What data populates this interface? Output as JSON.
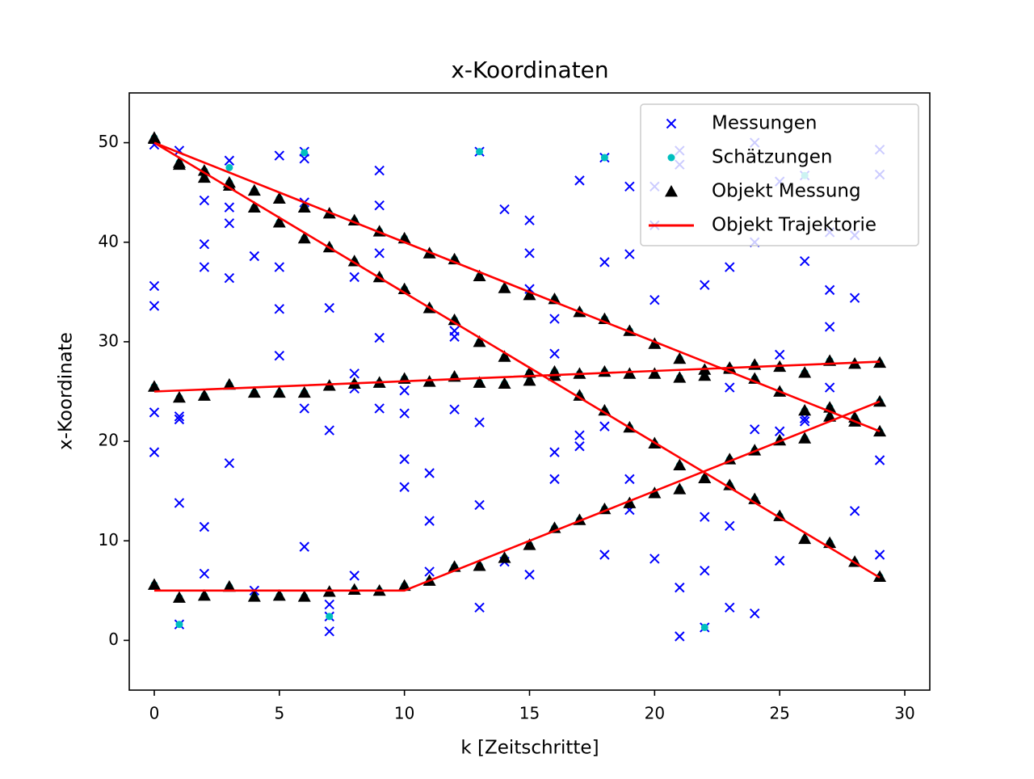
{
  "chart_data": {
    "type": "scatter",
    "title": "x-Koordinaten",
    "xlabel": "k [Zeitschritte]",
    "ylabel": "x-Koordinate",
    "xlim": [
      -1,
      31
    ],
    "ylim": [
      -5,
      55
    ],
    "xticks": [
      0,
      5,
      10,
      15,
      20,
      25,
      30
    ],
    "yticks": [
      0,
      10,
      20,
      30,
      40,
      50
    ],
    "grid": false,
    "legend": "upper right",
    "series": [
      {
        "name": "Messungen",
        "color": "#0000ff",
        "marker": "x",
        "x": [
          0,
          0,
          0,
          0,
          0,
          1,
          1,
          1,
          1,
          1,
          2,
          2,
          2,
          2,
          2,
          3,
          3,
          3,
          3,
          3,
          4,
          4,
          5,
          5,
          5,
          5,
          6,
          6,
          6,
          6,
          6,
          7,
          7,
          7,
          7,
          7,
          8,
          8,
          8,
          8,
          9,
          9,
          9,
          9,
          9,
          10,
          10,
          10,
          10,
          11,
          11,
          11,
          12,
          12,
          12,
          13,
          13,
          13,
          13,
          14,
          14,
          15,
          15,
          15,
          15,
          16,
          16,
          16,
          16,
          17,
          17,
          17,
          18,
          18,
          18,
          18,
          19,
          19,
          19,
          19,
          20,
          20,
          20,
          20,
          21,
          21,
          21,
          21,
          22,
          22,
          22,
          22,
          23,
          23,
          23,
          23,
          24,
          24,
          24,
          24,
          25,
          25,
          25,
          25,
          26,
          26,
          26,
          26,
          27,
          27,
          27,
          27,
          28,
          28,
          28,
          29,
          29,
          29,
          29
        ],
        "values": [
          35.6,
          33.6,
          22.9,
          18.9,
          49.8,
          49.2,
          22.5,
          22.2,
          13.8,
          1.6,
          44.2,
          39.8,
          37.5,
          11.4,
          6.7,
          48.2,
          43.5,
          41.9,
          36.4,
          17.8,
          38.6,
          5.0,
          48.7,
          37.5,
          33.3,
          28.6,
          49.1,
          48.4,
          44.0,
          23.3,
          9.4,
          33.4,
          21.1,
          3.6,
          2.4,
          0.9,
          36.5,
          26.8,
          25.3,
          6.5,
          47.2,
          43.7,
          38.9,
          30.4,
          23.3,
          25.1,
          22.8,
          18.2,
          15.4,
          16.8,
          12.0,
          6.9,
          31.1,
          30.5,
          23.2,
          49.1,
          21.9,
          13.6,
          3.3,
          43.3,
          7.9,
          42.2,
          38.9,
          35.3,
          6.6,
          32.3,
          28.8,
          18.9,
          16.2,
          46.2,
          20.6,
          19.5,
          48.5,
          38.0,
          21.5,
          8.6,
          45.6,
          38.8,
          16.2,
          13.1,
          45.6,
          41.7,
          34.2,
          8.2,
          49.2,
          47.8,
          5.3,
          0.4,
          35.7,
          12.4,
          7.0,
          1.3,
          37.5,
          25.4,
          11.5,
          3.3,
          50.0,
          40.0,
          21.2,
          2.7,
          46.1,
          28.7,
          21.0,
          8.0,
          46.7,
          38.1,
          22.3,
          22.0,
          41.0,
          35.2,
          31.5,
          25.4,
          40.7,
          34.4,
          13.0,
          49.3,
          46.8,
          18.1,
          8.6
        ]
      },
      {
        "name": "Schätzungen",
        "color": "#00bfbf",
        "marker": "o",
        "x": [
          0,
          1,
          2,
          3,
          4,
          5,
          6,
          7,
          8,
          9,
          10,
          11,
          12,
          13,
          14,
          15,
          16,
          17,
          18,
          19,
          20,
          21,
          22,
          23,
          24,
          25,
          26,
          27,
          28,
          29,
          0,
          1,
          2,
          3,
          4,
          5,
          6,
          7,
          8,
          9,
          10,
          11,
          12,
          13,
          14,
          15,
          16,
          17,
          18,
          19,
          20,
          21,
          22,
          23,
          24,
          25,
          26,
          27,
          28,
          29,
          0,
          1,
          2,
          3,
          4,
          5,
          6,
          7,
          8,
          9,
          10,
          11,
          12,
          13,
          14,
          15,
          16,
          17,
          18,
          19,
          20,
          21,
          22,
          23,
          24,
          25,
          26,
          27,
          28,
          29,
          0,
          1,
          2,
          3,
          4,
          5,
          6,
          7,
          8,
          9,
          10,
          11,
          12,
          13,
          14,
          15,
          16,
          17,
          18,
          19,
          20,
          21,
          22,
          23,
          24,
          25,
          26,
          27,
          28,
          29,
          1,
          7,
          6,
          13,
          18,
          22,
          26,
          3
        ],
        "values": [
          50.5,
          48.0,
          47.2,
          46.0,
          45.2,
          44.4,
          43.5,
          42.9,
          42.2,
          41.1,
          40.4,
          38.9,
          38.3,
          36.6,
          35.4,
          34.7,
          34.3,
          33.0,
          32.3,
          31.1,
          29.8,
          28.3,
          27.2,
          27.3,
          26.3,
          25.0,
          23.1,
          23.4,
          22.0,
          21.0,
          50.4,
          47.8,
          46.5,
          45.7,
          43.5,
          42.0,
          40.4,
          39.5,
          38.1,
          36.5,
          35.3,
          33.4,
          32.2,
          30.0,
          28.5,
          26.9,
          26.6,
          24.6,
          23.1,
          21.4,
          19.8,
          17.6,
          16.3,
          15.6,
          14.2,
          12.5,
          10.2,
          9.8,
          7.9,
          6.4,
          25.5,
          24.4,
          24.6,
          25.7,
          24.9,
          24.9,
          24.9,
          25.6,
          25.8,
          25.9,
          26.3,
          26.0,
          26.5,
          25.9,
          25.8,
          26.1,
          27.0,
          26.8,
          27.0,
          26.8,
          26.8,
          26.4,
          26.6,
          27.4,
          27.7,
          27.5,
          26.9,
          28.1,
          27.8,
          27.9,
          5.6,
          4.3,
          4.5,
          5.4,
          4.4,
          4.5,
          4.4,
          4.9,
          5.1,
          5.0,
          5.5,
          6.0,
          7.4,
          7.5,
          8.3,
          9.6,
          11.3,
          12.1,
          13.2,
          13.8,
          14.8,
          15.2,
          16.3,
          18.2,
          19.1,
          20.1,
          20.3,
          22.5,
          22.4,
          24.0,
          1.6,
          2.4,
          49.0,
          49.1,
          48.5,
          1.3,
          46.7,
          47.5
        ]
      },
      {
        "name": "Objekt Messung",
        "color": "#000000",
        "marker": "^",
        "x": [
          0,
          1,
          2,
          3,
          4,
          5,
          6,
          7,
          8,
          9,
          10,
          11,
          12,
          13,
          14,
          15,
          16,
          17,
          18,
          19,
          20,
          21,
          22,
          23,
          24,
          25,
          26,
          27,
          28,
          29,
          0,
          1,
          2,
          3,
          4,
          5,
          6,
          7,
          8,
          9,
          10,
          11,
          12,
          13,
          14,
          15,
          16,
          17,
          18,
          19,
          20,
          21,
          22,
          23,
          24,
          25,
          26,
          27,
          28,
          29,
          0,
          1,
          2,
          3,
          4,
          5,
          6,
          7,
          8,
          9,
          10,
          11,
          12,
          13,
          14,
          15,
          16,
          17,
          18,
          19,
          20,
          21,
          22,
          23,
          24,
          25,
          26,
          27,
          28,
          29,
          0,
          1,
          2,
          3,
          4,
          5,
          6,
          7,
          8,
          9,
          10,
          11,
          12,
          13,
          14,
          15,
          16,
          17,
          18,
          19,
          20,
          21,
          22,
          23,
          24,
          25,
          26,
          27,
          28,
          29
        ],
        "values": [
          50.5,
          48.0,
          47.2,
          46.0,
          45.2,
          44.4,
          43.5,
          42.9,
          42.2,
          41.1,
          40.4,
          38.9,
          38.3,
          36.6,
          35.4,
          34.7,
          34.3,
          33.0,
          32.3,
          31.1,
          29.8,
          28.3,
          27.2,
          27.3,
          26.3,
          25.0,
          23.1,
          23.4,
          22.0,
          21.0,
          50.4,
          47.8,
          46.5,
          45.7,
          43.5,
          42.0,
          40.4,
          39.5,
          38.1,
          36.5,
          35.3,
          33.4,
          32.2,
          30.0,
          28.5,
          26.9,
          26.6,
          24.6,
          23.1,
          21.4,
          19.8,
          17.6,
          16.3,
          15.6,
          14.2,
          12.5,
          10.2,
          9.8,
          7.9,
          6.4,
          25.5,
          24.4,
          24.6,
          25.7,
          24.9,
          24.9,
          24.9,
          25.6,
          25.8,
          25.9,
          26.3,
          26.0,
          26.5,
          25.9,
          25.8,
          26.1,
          27.0,
          26.8,
          27.0,
          26.8,
          26.8,
          26.4,
          26.6,
          27.4,
          27.7,
          27.5,
          26.9,
          28.1,
          27.8,
          27.9,
          5.6,
          4.3,
          4.5,
          5.4,
          4.4,
          4.5,
          4.4,
          4.9,
          5.1,
          5.0,
          5.5,
          6.0,
          7.4,
          7.5,
          8.3,
          9.6,
          11.3,
          12.1,
          13.2,
          13.8,
          14.8,
          15.2,
          16.3,
          18.2,
          19.1,
          20.1,
          20.3,
          22.5,
          22.4,
          24.0
        ]
      },
      {
        "name": "Objekt Trajektorie",
        "color": "#ff0000",
        "marker": "line",
        "x": [
          0,
          29,
          null,
          0,
          29,
          null,
          0,
          29,
          null,
          0,
          10,
          29
        ],
        "values": [
          50,
          21,
          null,
          50,
          6.3,
          null,
          25,
          28,
          null,
          5,
          5,
          24
        ]
      }
    ]
  }
}
